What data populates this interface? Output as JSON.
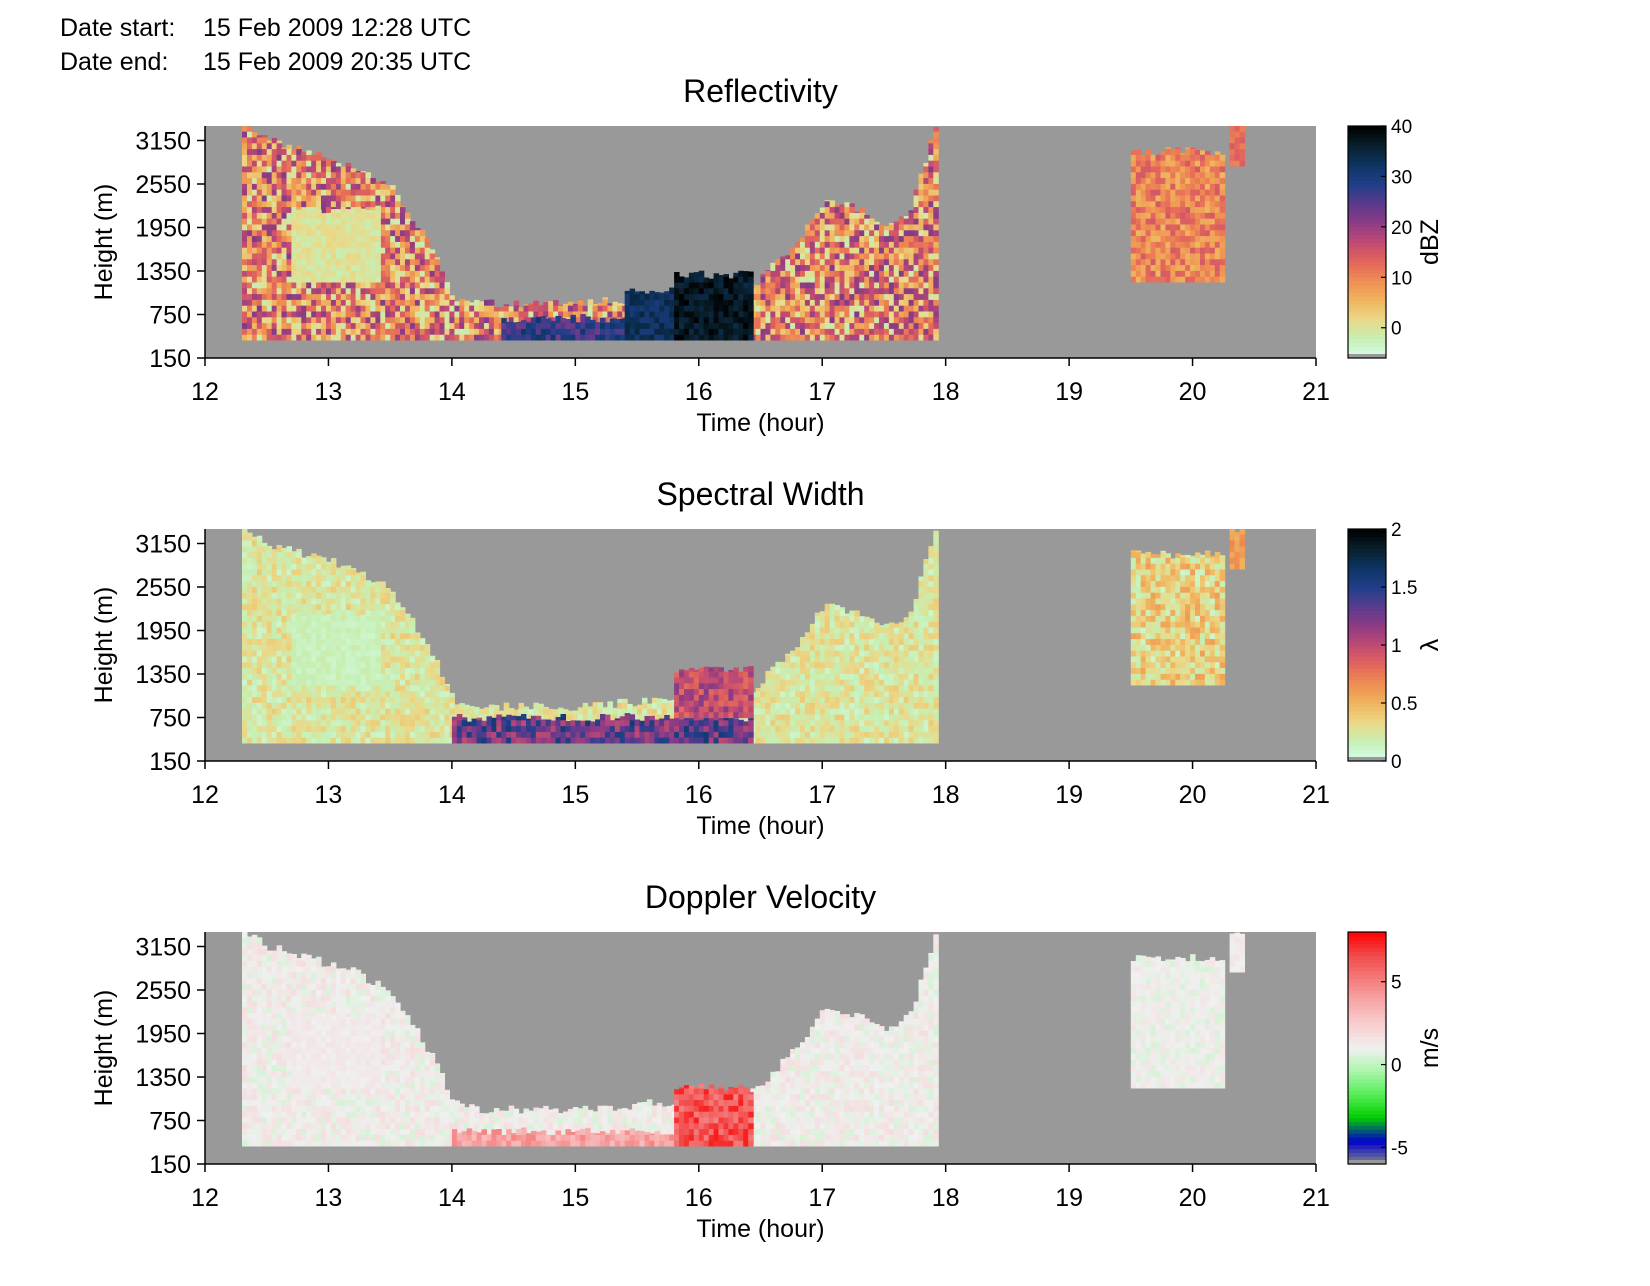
{
  "header": {
    "date_start_label": "Date start:",
    "date_start_value": "15 Feb 2009 12:28 UTC",
    "date_end_label": "Date end:",
    "date_end_value": "15 Feb 2009 20:35 UTC"
  },
  "colors": {
    "no_data": "#999999",
    "refl_scale": [
      "#d8fff0",
      "#c6efb4",
      "#ead988",
      "#f0b45e",
      "#ef8e52",
      "#e3655c",
      "#c04a73",
      "#8e3c84",
      "#5a3a8e",
      "#1f3f88",
      "#0e3463",
      "#081f2b",
      "#000000"
    ],
    "sw_scale": [
      "#d8fff0",
      "#c6efb4",
      "#ead988",
      "#f0b45e",
      "#ef8e52",
      "#e3655c",
      "#c04a73",
      "#8e3c84",
      "#5a3a8e",
      "#1f3f88",
      "#0e3463",
      "#081f2b",
      "#000000"
    ],
    "vel_scale": [
      "#888888",
      "#0000cc",
      "#00cc00",
      "#55ee55",
      "#aaf5aa",
      "#f0f0f0",
      "#f8d0d0",
      "#f7a9a9",
      "#f47b7b",
      "#f24b4b",
      "#ff0000"
    ]
  },
  "chart_data": [
    {
      "type": "heatmap",
      "title": "Reflectivity",
      "xlabel": "Time (hour)",
      "ylabel": "Height (m)",
      "xlim": [
        12,
        21
      ],
      "ylim": [
        150,
        3350
      ],
      "xticks": [
        12,
        13,
        14,
        15,
        16,
        17,
        18,
        19,
        20,
        21
      ],
      "yticks": [
        150,
        750,
        1350,
        1950,
        2550,
        3150
      ],
      "colorbar": {
        "label": "dBZ",
        "range": [
          -6,
          40
        ],
        "ticks": [
          0,
          10,
          20,
          30,
          40
        ]
      },
      "regions": [
        {
          "t": [
            12.3,
            17.9
          ],
          "base": 400,
          "value_range": [
            -2,
            22
          ]
        },
        {
          "t": [
            12.7,
            13.4
          ],
          "base": 1200,
          "top": 2200,
          "value_range": [
            -2,
            2
          ]
        },
        {
          "t": [
            14.4,
            15.5
          ],
          "base": 400,
          "top": 700,
          "value_range": [
            22,
            32
          ]
        },
        {
          "t": [
            15.4,
            15.8
          ],
          "base": 400,
          "top": 1100,
          "value_range": [
            30,
            35
          ]
        },
        {
          "t": [
            15.8,
            16.4
          ],
          "base": 400,
          "top": 1300,
          "value_range": [
            34,
            40
          ]
        },
        {
          "t": [
            19.5,
            20.25
          ],
          "base": 1200,
          "top": 3000,
          "value_range": [
            5,
            15
          ]
        },
        {
          "t": [
            20.3,
            20.4
          ],
          "base": 2800,
          "top": 3350,
          "value_range": [
            10,
            15
          ]
        }
      ]
    },
    {
      "type": "heatmap",
      "title": "Spectral Width",
      "xlabel": "Time (hour)",
      "ylabel": "Height (m)",
      "xlim": [
        12,
        21
      ],
      "ylim": [
        150,
        3350
      ],
      "xticks": [
        12,
        13,
        14,
        15,
        16,
        17,
        18,
        19,
        20,
        21
      ],
      "yticks": [
        150,
        750,
        1350,
        1950,
        2550,
        3150
      ],
      "colorbar": {
        "label": "λ",
        "range": [
          0,
          2
        ],
        "ticks": [
          0,
          0.5,
          1,
          1.5,
          2
        ]
      },
      "regions": [
        {
          "t": [
            12.3,
            17.9
          ],
          "base": 400,
          "value_range": [
            0.1,
            0.4
          ]
        },
        {
          "t": [
            12.7,
            13.4
          ],
          "base": 1200,
          "top": 2200,
          "value_range": [
            0.1,
            0.2
          ]
        },
        {
          "t": [
            14.0,
            16.4
          ],
          "base": 400,
          "top": 750,
          "value_range": [
            1.0,
            1.6
          ]
        },
        {
          "t": [
            15.8,
            16.4
          ],
          "base": 750,
          "top": 1400,
          "value_range": [
            0.8,
            1.2
          ]
        },
        {
          "t": [
            19.5,
            20.25
          ],
          "base": 1200,
          "top": 3000,
          "value_range": [
            0.1,
            0.6
          ]
        },
        {
          "t": [
            20.3,
            20.4
          ],
          "base": 2800,
          "top": 3350,
          "value_range": [
            0.5,
            0.7
          ]
        }
      ]
    },
    {
      "type": "heatmap",
      "title": "Doppler Velocity",
      "xlabel": "Time (hour)",
      "ylabel": "Height (m)",
      "xlim": [
        12,
        21
      ],
      "ylim": [
        150,
        3350
      ],
      "xticks": [
        12,
        13,
        14,
        15,
        16,
        17,
        18,
        19,
        20,
        21
      ],
      "yticks": [
        150,
        750,
        1350,
        1950,
        2550,
        3150
      ],
      "colorbar": {
        "label": "m/s",
        "range": [
          -6,
          8
        ],
        "ticks": [
          -5,
          0,
          5
        ]
      },
      "regions": [
        {
          "t": [
            12.3,
            17.9
          ],
          "base": 400,
          "value_range": [
            0.5,
            1.8
          ]
        },
        {
          "t": [
            12.7,
            13.4
          ],
          "base": 1200,
          "top": 2200,
          "value_range": [
            1.0,
            1.5
          ]
        },
        {
          "t": [
            14.0,
            15.8
          ],
          "base": 400,
          "top": 600,
          "value_range": [
            3.0,
            5.0
          ]
        },
        {
          "t": [
            15.8,
            16.4
          ],
          "base": 400,
          "top": 1200,
          "value_range": [
            5.0,
            7.5
          ]
        },
        {
          "t": [
            19.5,
            20.25
          ],
          "base": 1200,
          "top": 3000,
          "value_range": [
            0.5,
            1.5
          ]
        },
        {
          "t": [
            20.3,
            20.4
          ],
          "base": 2800,
          "top": 3350,
          "value_range": [
            1.0,
            1.5
          ]
        }
      ]
    }
  ]
}
